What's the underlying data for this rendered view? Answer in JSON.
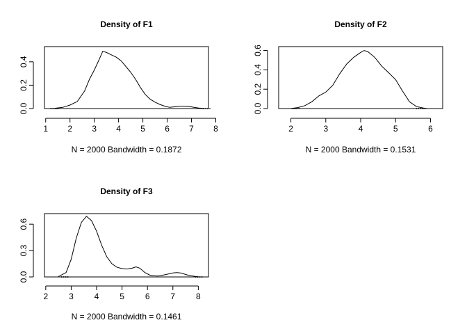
{
  "chart_data": [
    {
      "type": "line",
      "title": "Density of F1",
      "xlabel": "N = 2000   Bandwidth = 0.1872",
      "ylabel": "",
      "xlim": [
        0.95,
        7.7
      ],
      "ylim": [
        0,
        0.53
      ],
      "xticks": [
        1,
        2,
        3,
        4,
        5,
        6,
        7,
        8
      ],
      "xtick_labels": [
        "1",
        "2",
        "3",
        "4",
        "5",
        "6",
        "7",
        "8"
      ],
      "yticks": [
        0,
        0.2,
        0.4
      ],
      "ytick_labels": [
        "0.0",
        "0.2",
        "0.4"
      ],
      "rug_range": [
        1.5,
        7.5
      ],
      "series": [
        {
          "x": [
            1.4,
            1.7,
            2.0,
            2.3,
            2.6,
            2.8,
            3.0,
            3.2,
            3.35,
            3.5,
            3.7,
            3.9,
            4.1,
            4.3,
            4.5,
            4.7,
            4.9,
            5.1,
            5.3,
            5.5,
            5.7,
            5.9,
            6.1,
            6.3,
            6.5,
            6.7,
            6.9,
            7.1,
            7.3,
            7.5
          ],
          "y": [
            0.003,
            0.01,
            0.03,
            0.06,
            0.15,
            0.25,
            0.33,
            0.42,
            0.49,
            0.48,
            0.46,
            0.44,
            0.41,
            0.36,
            0.31,
            0.25,
            0.18,
            0.12,
            0.08,
            0.055,
            0.035,
            0.02,
            0.01,
            0.015,
            0.02,
            0.02,
            0.018,
            0.01,
            0.004,
            0.001
          ]
        }
      ]
    },
    {
      "type": "line",
      "title": "Density of F2",
      "xlabel": "N = 2000   Bandwidth = 0.1531",
      "ylabel": "",
      "xlim": [
        1.65,
        6.35
      ],
      "ylim": [
        0,
        0.64
      ],
      "xticks": [
        2,
        3,
        4,
        5,
        6
      ],
      "xtick_labels": [
        "2",
        "3",
        "4",
        "5",
        "6"
      ],
      "yticks": [
        0,
        0.2,
        0.4,
        0.6
      ],
      "ytick_labels": [
        "0.0",
        "0.2",
        "0.4",
        "0.6"
      ],
      "rug_range": [
        2.25,
        5.6
      ],
      "series": [
        {
          "x": [
            2.0,
            2.2,
            2.4,
            2.6,
            2.8,
            3.0,
            3.2,
            3.4,
            3.6,
            3.8,
            4.0,
            4.1,
            4.2,
            4.4,
            4.6,
            4.8,
            5.0,
            5.2,
            5.4,
            5.6,
            5.8,
            5.9
          ],
          "y": [
            0.001,
            0.01,
            0.03,
            0.07,
            0.13,
            0.17,
            0.24,
            0.36,
            0.46,
            0.53,
            0.58,
            0.6,
            0.59,
            0.53,
            0.44,
            0.37,
            0.3,
            0.18,
            0.07,
            0.02,
            0.005,
            0.001
          ]
        }
      ]
    },
    {
      "type": "line",
      "title": "Density of F3",
      "xlabel": "N = 2000   Bandwidth = 0.1461",
      "ylabel": "",
      "xlim": [
        1.95,
        8.4
      ],
      "ylim": [
        0,
        0.72
      ],
      "xticks": [
        2,
        3,
        4,
        5,
        6,
        7,
        8
      ],
      "xtick_labels": [
        "2",
        "3",
        "4",
        "5",
        "6",
        "7",
        "8"
      ],
      "yticks": [
        0,
        0.3,
        0.6
      ],
      "ytick_labels": [
        "0.0",
        "0.3",
        "0.6"
      ],
      "rug_range": [
        2.9,
        7.9
      ],
      "series": [
        {
          "x": [
            2.5,
            2.8,
            3.0,
            3.2,
            3.4,
            3.6,
            3.8,
            4.0,
            4.2,
            4.4,
            4.6,
            4.8,
            5.0,
            5.2,
            5.4,
            5.55,
            5.7,
            5.9,
            6.1,
            6.4,
            6.7,
            7.0,
            7.15,
            7.3,
            7.6,
            7.9,
            8.0
          ],
          "y": [
            0.005,
            0.05,
            0.2,
            0.44,
            0.62,
            0.69,
            0.64,
            0.52,
            0.36,
            0.23,
            0.15,
            0.11,
            0.095,
            0.09,
            0.1,
            0.115,
            0.1,
            0.05,
            0.02,
            0.01,
            0.025,
            0.045,
            0.05,
            0.045,
            0.02,
            0.005,
            0.002
          ]
        }
      ]
    }
  ]
}
